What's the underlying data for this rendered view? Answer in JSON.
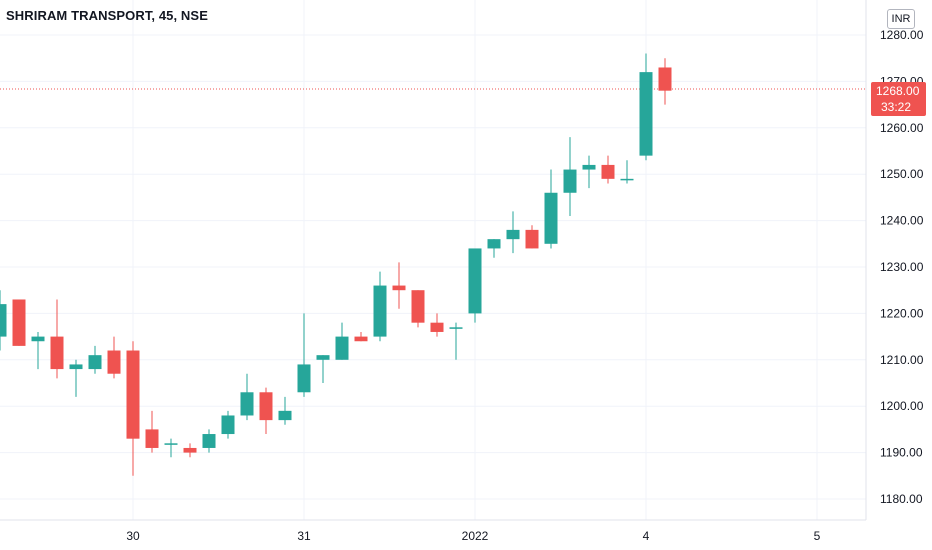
{
  "header": {
    "symbol_title": "SHRIRAM TRANSPORT, 45, NSE",
    "currency": "INR"
  },
  "last_price": {
    "value": "1268.00",
    "countdown": "33:22",
    "color": "#ef5350"
  },
  "colors": {
    "up": "#26a69a",
    "down": "#ef5350",
    "grid": "#f0f3fa",
    "axis_text": "#131722"
  },
  "chart_data": {
    "type": "candlestick",
    "title": "SHRIRAM TRANSPORT, 45, NSE",
    "ylim": [
      1175,
      1285
    ],
    "y_ticks": [
      "1280.00",
      "1270.00",
      "1260.00",
      "1250.00",
      "1240.00",
      "1230.00",
      "1220.00",
      "1210.00",
      "1200.00",
      "1190.00",
      "1180.00"
    ],
    "x_ticks": [
      {
        "label": "30",
        "index": 7
      },
      {
        "label": "31",
        "index": 16
      },
      {
        "label": "2022",
        "index": 25
      },
      {
        "label": "4",
        "index": 34
      },
      {
        "label": "5",
        "index": 43
      }
    ],
    "grid": true,
    "candles": [
      {
        "o": 1215,
        "h": 1225,
        "l": 1212,
        "c": 1222
      },
      {
        "o": 1223,
        "h": 1223,
        "l": 1213,
        "c": 1213
      },
      {
        "o": 1214,
        "h": 1216,
        "l": 1208,
        "c": 1215
      },
      {
        "o": 1215,
        "h": 1223,
        "l": 1206,
        "c": 1208
      },
      {
        "o": 1208,
        "h": 1210,
        "l": 1202,
        "c": 1209
      },
      {
        "o": 1208,
        "h": 1213,
        "l": 1207,
        "c": 1211
      },
      {
        "o": 1212,
        "h": 1215,
        "l": 1206,
        "c": 1207
      },
      {
        "o": 1212,
        "h": 1214,
        "l": 1185,
        "c": 1193
      },
      {
        "o": 1195,
        "h": 1199,
        "l": 1190,
        "c": 1191
      },
      {
        "o": 1192,
        "h": 1193,
        "l": 1189,
        "c": 1192
      },
      {
        "o": 1191,
        "h": 1192,
        "l": 1189,
        "c": 1190
      },
      {
        "o": 1191,
        "h": 1195,
        "l": 1190,
        "c": 1194
      },
      {
        "o": 1194,
        "h": 1199,
        "l": 1193,
        "c": 1198
      },
      {
        "o": 1198,
        "h": 1207,
        "l": 1197,
        "c": 1203
      },
      {
        "o": 1203,
        "h": 1204,
        "l": 1194,
        "c": 1197
      },
      {
        "o": 1197,
        "h": 1202,
        "l": 1196,
        "c": 1199
      },
      {
        "o": 1203,
        "h": 1220,
        "l": 1202,
        "c": 1209
      },
      {
        "o": 1210,
        "h": 1211,
        "l": 1205,
        "c": 1211
      },
      {
        "o": 1210,
        "h": 1218,
        "l": 1210,
        "c": 1215
      },
      {
        "o": 1215,
        "h": 1216,
        "l": 1214,
        "c": 1214
      },
      {
        "o": 1215,
        "h": 1229,
        "l": 1214,
        "c": 1226
      },
      {
        "o": 1226,
        "h": 1231,
        "l": 1221,
        "c": 1225
      },
      {
        "o": 1225,
        "h": 1225,
        "l": 1217,
        "c": 1218
      },
      {
        "o": 1218,
        "h": 1220,
        "l": 1215,
        "c": 1216
      },
      {
        "o": 1217,
        "h": 1218,
        "l": 1210,
        "c": 1217
      },
      {
        "o": 1220,
        "h": 1234,
        "l": 1218,
        "c": 1234
      },
      {
        "o": 1234,
        "h": 1236,
        "l": 1232,
        "c": 1236
      },
      {
        "o": 1236,
        "h": 1242,
        "l": 1233,
        "c": 1238
      },
      {
        "o": 1238,
        "h": 1239,
        "l": 1234,
        "c": 1234
      },
      {
        "o": 1235,
        "h": 1251,
        "l": 1234,
        "c": 1246
      },
      {
        "o": 1246,
        "h": 1258,
        "l": 1241,
        "c": 1251
      },
      {
        "o": 1251,
        "h": 1254,
        "l": 1247,
        "c": 1252
      },
      {
        "o": 1252,
        "h": 1254,
        "l": 1248,
        "c": 1249
      },
      {
        "o": 1249,
        "h": 1253,
        "l": 1248,
        "c": 1249
      },
      {
        "o": 1254,
        "h": 1276,
        "l": 1253,
        "c": 1272
      },
      {
        "o": 1273,
        "h": 1275,
        "l": 1265,
        "c": 1268
      }
    ]
  }
}
